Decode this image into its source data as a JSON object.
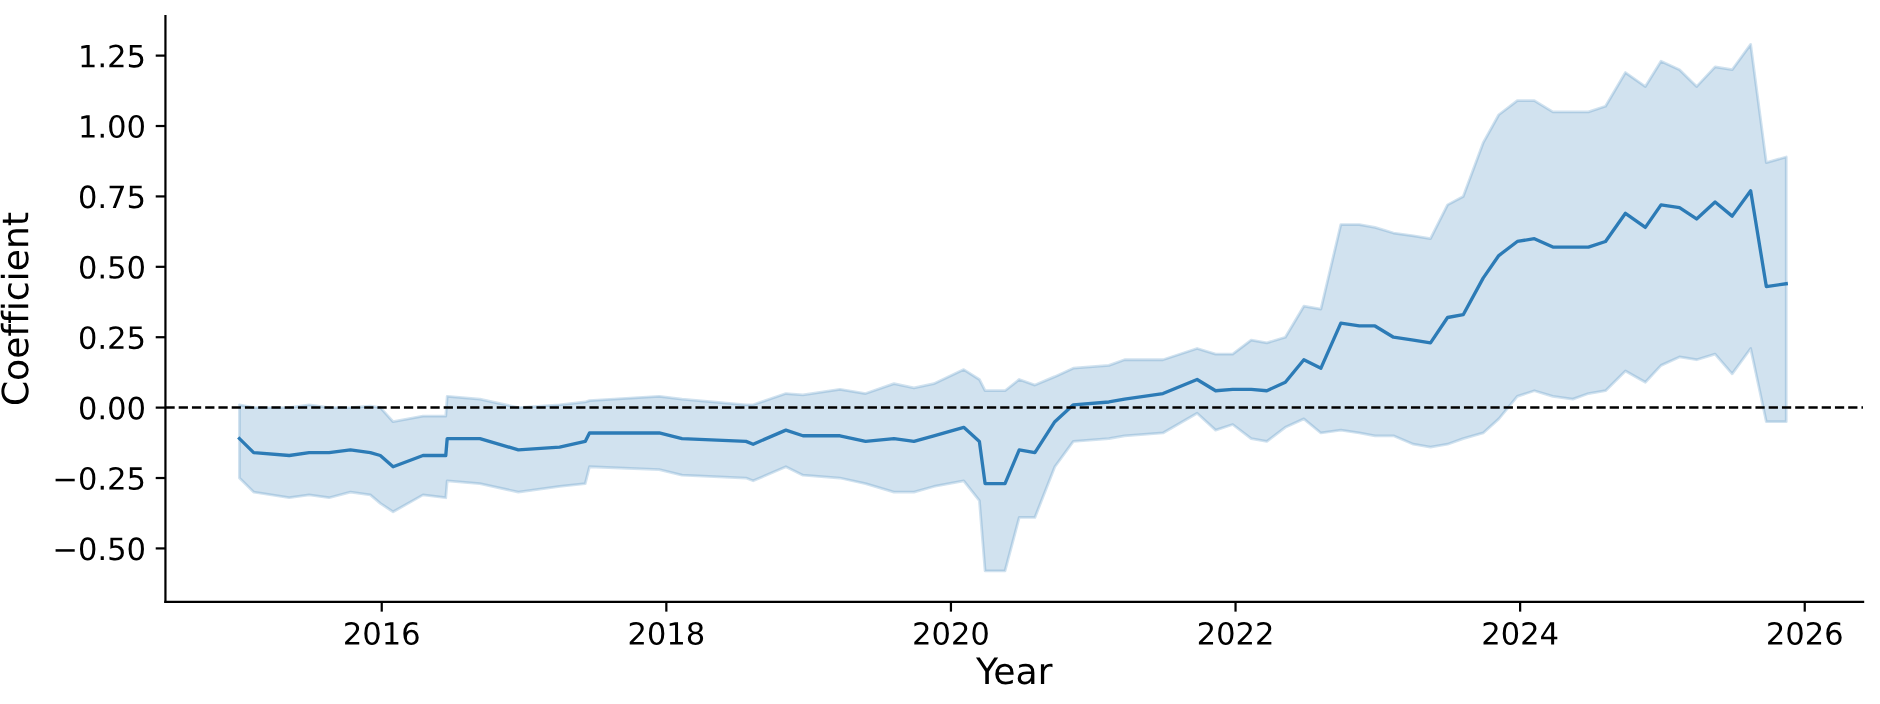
{
  "chart_data": {
    "type": "line",
    "xlabel": "Year",
    "ylabel": "Coefficient",
    "xlim": [
      2014.48,
      2026.41
    ],
    "ylim": [
      -0.69,
      1.39
    ],
    "xticks": [
      2016,
      2018,
      2020,
      2022,
      2024,
      2026
    ],
    "yticks": [
      {
        "value": -0.5,
        "label": "−0.50"
      },
      {
        "value": -0.25,
        "label": "−0.25"
      },
      {
        "value": 0,
        "label": "0.00"
      },
      {
        "value": 0.25,
        "label": "0.25"
      },
      {
        "value": 0.5,
        "label": "0.50"
      },
      {
        "value": 0.75,
        "label": "0.75"
      },
      {
        "value": 1,
        "label": "1.00"
      },
      {
        "value": 1.25,
        "label": "1.25"
      }
    ],
    "grid": false,
    "marker": "none",
    "line_style": "solid",
    "ref_lines": [
      {
        "axis": "y",
        "value": 0,
        "color": "#000000",
        "line_style": "dashed"
      }
    ],
    "series": [
      {
        "color": "#2c7bb6",
        "x": [
          2015.0,
          2015.1,
          2015.35,
          2015.49,
          2015.63,
          2015.78,
          2015.92,
          2015.99,
          2016.08,
          2016.29,
          2016.45,
          2016.46,
          2016.69,
          2016.96,
          2017.25,
          2017.43,
          2017.46,
          2017.95,
          2018.11,
          2018.56,
          2018.61,
          2018.84,
          2018.96,
          2019.22,
          2019.4,
          2019.6,
          2019.74,
          2019.88,
          2020.09,
          2020.2,
          2020.24,
          2020.38,
          2020.48,
          2020.59,
          2020.73,
          2020.86,
          2021.11,
          2021.22,
          2021.49,
          2021.73,
          2021.86,
          2021.98,
          2022.11,
          2022.22,
          2022.35,
          2022.48,
          2022.6,
          2022.74,
          2022.87,
          2022.98,
          2023.11,
          2023.25,
          2023.37,
          2023.49,
          2023.6,
          2023.74,
          2023.85,
          2023.98,
          2024.1,
          2024.23,
          2024.37,
          2024.48,
          2024.6,
          2024.74,
          2024.88,
          2024.99,
          2025.12,
          2025.24,
          2025.37,
          2025.49,
          2025.62,
          2025.73,
          2025.87
        ],
        "values": [
          -0.11,
          -0.16,
          -0.17,
          -0.16,
          -0.16,
          -0.15,
          -0.16,
          -0.17,
          -0.21,
          -0.17,
          -0.17,
          -0.11,
          -0.11,
          -0.15,
          -0.14,
          -0.12,
          -0.09,
          -0.09,
          -0.11,
          -0.12,
          -0.13,
          -0.08,
          -0.1,
          -0.1,
          -0.12,
          -0.11,
          -0.12,
          -0.1,
          -0.07,
          -0.12,
          -0.27,
          -0.27,
          -0.15,
          -0.16,
          -0.05,
          0.01,
          0.02,
          0.03,
          0.05,
          0.1,
          0.06,
          0.065,
          0.065,
          0.06,
          0.09,
          0.17,
          0.14,
          0.3,
          0.29,
          0.29,
          0.25,
          0.24,
          0.23,
          0.32,
          0.33,
          0.46,
          0.54,
          0.59,
          0.6,
          0.57,
          0.57,
          0.57,
          0.59,
          0.69,
          0.64,
          0.72,
          0.71,
          0.67,
          0.73,
          0.68,
          0.77,
          0.43,
          0.44
        ],
        "upper": [
          0.01,
          0.0,
          0.0,
          0.01,
          0.0,
          0.0,
          0.005,
          0.0,
          -0.05,
          -0.03,
          -0.03,
          0.04,
          0.03,
          0.0,
          0.01,
          0.02,
          0.025,
          0.04,
          0.03,
          0.01,
          0.01,
          0.05,
          0.045,
          0.065,
          0.05,
          0.085,
          0.07,
          0.085,
          0.135,
          0.1,
          0.06,
          0.06,
          0.1,
          0.08,
          0.11,
          0.14,
          0.15,
          0.17,
          0.17,
          0.21,
          0.19,
          0.19,
          0.24,
          0.23,
          0.25,
          0.36,
          0.35,
          0.65,
          0.65,
          0.64,
          0.62,
          0.61,
          0.6,
          0.72,
          0.75,
          0.94,
          1.04,
          1.09,
          1.09,
          1.05,
          1.05,
          1.05,
          1.07,
          1.19,
          1.14,
          1.23,
          1.2,
          1.14,
          1.21,
          1.2,
          1.29,
          0.87,
          0.89
        ],
        "lower": [
          -0.25,
          -0.3,
          -0.32,
          -0.31,
          -0.32,
          -0.3,
          -0.31,
          -0.34,
          -0.37,
          -0.31,
          -0.32,
          -0.26,
          -0.27,
          -0.3,
          -0.28,
          -0.27,
          -0.21,
          -0.22,
          -0.24,
          -0.25,
          -0.26,
          -0.21,
          -0.24,
          -0.25,
          -0.27,
          -0.3,
          -0.3,
          -0.28,
          -0.26,
          -0.33,
          -0.58,
          -0.58,
          -0.39,
          -0.39,
          -0.21,
          -0.12,
          -0.11,
          -0.1,
          -0.09,
          -0.02,
          -0.08,
          -0.06,
          -0.11,
          -0.12,
          -0.07,
          -0.04,
          -0.09,
          -0.08,
          -0.09,
          -0.1,
          -0.1,
          -0.13,
          -0.14,
          -0.13,
          -0.11,
          -0.09,
          -0.04,
          0.04,
          0.06,
          0.04,
          0.03,
          0.05,
          0.06,
          0.13,
          0.09,
          0.15,
          0.18,
          0.17,
          0.19,
          0.12,
          0.21,
          -0.05,
          -0.05
        ]
      }
    ]
  }
}
